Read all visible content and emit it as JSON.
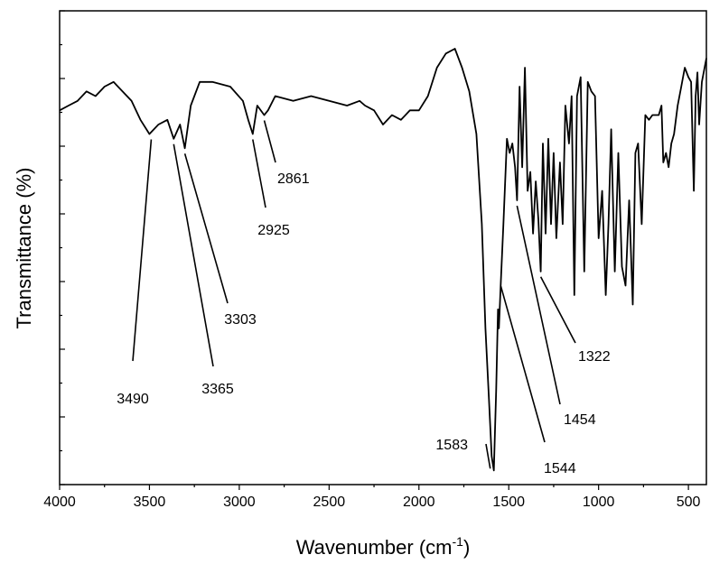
{
  "chart_data": {
    "type": "line",
    "xlabel": "Wavenumber (cm",
    "xlabel_sup": "-1",
    "xlabel_end": ")",
    "ylabel": "Transmittance (%)",
    "xlim": [
      4000,
      400
    ],
    "x_reversed": true,
    "ylim": [
      0,
      1
    ],
    "y_tick_labels": false,
    "grid": false,
    "legend": "none",
    "x_ticks": [
      4000,
      3500,
      3000,
      2500,
      2000,
      1500,
      1000,
      500
    ],
    "x_tick_labels": [
      "4000",
      "3500",
      "3000",
      "2500",
      "2000",
      "1500",
      "1000",
      "500"
    ],
    "series": [
      {
        "x": [
          4000,
          3950,
          3900,
          3850,
          3800,
          3750,
          3700,
          3650,
          3600,
          3550,
          3500,
          3450,
          3400,
          3365,
          3330,
          3303,
          3270,
          3220,
          3150,
          3050,
          2980,
          2950,
          2925,
          2900,
          2861,
          2840,
          2800,
          2700,
          2600,
          2500,
          2400,
          2330,
          2300,
          2250,
          2200,
          2150,
          2100,
          2050,
          2000,
          1950,
          1900,
          1850,
          1800,
          1760,
          1720,
          1680,
          1650,
          1630,
          1610,
          1595,
          1583,
          1570,
          1560,
          1555,
          1544,
          1530,
          1510,
          1495,
          1480,
          1465,
          1454,
          1440,
          1425,
          1410,
          1395,
          1380,
          1365,
          1350,
          1335,
          1322,
          1310,
          1295,
          1280,
          1265,
          1250,
          1235,
          1215,
          1200,
          1185,
          1165,
          1150,
          1135,
          1120,
          1100,
          1080,
          1060,
          1040,
          1020,
          1000,
          980,
          960,
          945,
          930,
          910,
          890,
          870,
          850,
          830,
          810,
          795,
          780,
          760,
          740,
          720,
          700,
          680,
          665,
          650,
          640,
          625,
          610,
          595,
          580,
          560,
          540,
          520,
          500,
          485,
          470,
          460,
          450,
          440,
          425,
          410,
          400
        ],
        "y": [
          0.79,
          0.8,
          0.81,
          0.83,
          0.82,
          0.84,
          0.85,
          0.83,
          0.81,
          0.77,
          0.74,
          0.76,
          0.77,
          0.73,
          0.76,
          0.71,
          0.8,
          0.85,
          0.85,
          0.84,
          0.81,
          0.77,
          0.74,
          0.8,
          0.78,
          0.79,
          0.82,
          0.81,
          0.82,
          0.81,
          0.8,
          0.81,
          0.8,
          0.79,
          0.76,
          0.78,
          0.77,
          0.79,
          0.79,
          0.82,
          0.88,
          0.91,
          0.92,
          0.88,
          0.83,
          0.74,
          0.55,
          0.33,
          0.18,
          0.06,
          0.03,
          0.2,
          0.37,
          0.33,
          0.43,
          0.55,
          0.73,
          0.7,
          0.72,
          0.67,
          0.6,
          0.84,
          0.67,
          0.88,
          0.62,
          0.66,
          0.53,
          0.64,
          0.56,
          0.45,
          0.72,
          0.53,
          0.73,
          0.55,
          0.7,
          0.52,
          0.68,
          0.55,
          0.8,
          0.72,
          0.82,
          0.4,
          0.82,
          0.86,
          0.45,
          0.85,
          0.83,
          0.82,
          0.52,
          0.62,
          0.4,
          0.55,
          0.75,
          0.45,
          0.7,
          0.46,
          0.42,
          0.6,
          0.38,
          0.7,
          0.72,
          0.55,
          0.78,
          0.77,
          0.78,
          0.78,
          0.78,
          0.8,
          0.68,
          0.7,
          0.67,
          0.72,
          0.74,
          0.8,
          0.84,
          0.88,
          0.86,
          0.85,
          0.62,
          0.82,
          0.87,
          0.76,
          0.85,
          0.88,
          0.9
        ]
      }
    ],
    "annotations": [
      {
        "label": "3490",
        "x": 3490
      },
      {
        "label": "3365",
        "x": 3365
      },
      {
        "label": "3303",
        "x": 3303
      },
      {
        "label": "2925",
        "x": 2925
      },
      {
        "label": "2861",
        "x": 2861
      },
      {
        "label": "1583",
        "x": 1583
      },
      {
        "label": "1544",
        "x": 1544
      },
      {
        "label": "1454",
        "x": 1454
      },
      {
        "label": "1322",
        "x": 1322
      }
    ]
  }
}
